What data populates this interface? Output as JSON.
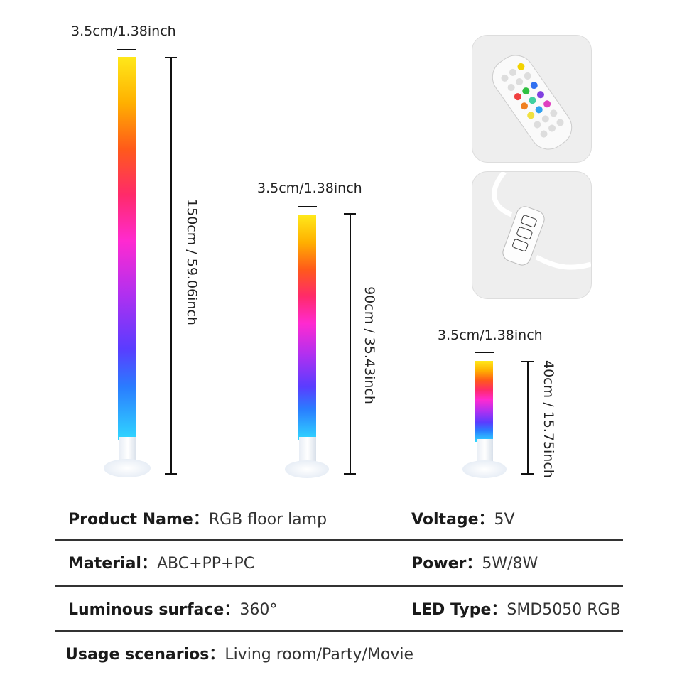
{
  "lamps": [
    {
      "name": "tall",
      "width_label": "3.5cm/1.38inch",
      "height_label": "150cm / 59.06inch"
    },
    {
      "name": "medium",
      "width_label": "3.5cm/1.38inch",
      "height_label": "90cm / 35.43inch"
    },
    {
      "name": "small",
      "width_label": "3.5cm/1.38inch",
      "height_label": "40cm / 15.75inch"
    }
  ],
  "photos": [
    {
      "name": "remote-control"
    },
    {
      "name": "inline-controller"
    }
  ],
  "specs": {
    "product_name": {
      "label": "Product Name：",
      "value": "RGB floor lamp"
    },
    "voltage": {
      "label": "Voltage：",
      "value": "5V"
    },
    "material": {
      "label": "Material：",
      "value": "ABC+PP+PC"
    },
    "power": {
      "label": "Power：",
      "value": "5W/8W"
    },
    "luminous": {
      "label": "Luminous surface：",
      "value": "360°"
    },
    "led_type": {
      "label": "LED Type：",
      "value": "SMD5050 RGB"
    },
    "usage": {
      "label": "Usage scenarios：",
      "value": "Living room/Party/Movie"
    }
  }
}
